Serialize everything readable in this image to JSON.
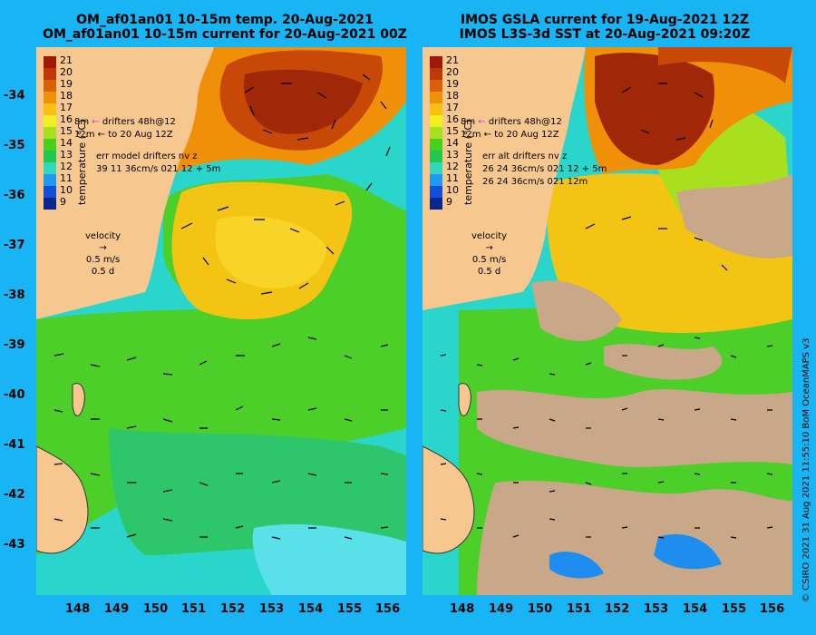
{
  "left": {
    "title_line1": "OM_af01an01 10-15m temp. 20-Aug-2021",
    "title_line2": "OM_af01an01 10-15m current for 20-Aug-2021 00Z",
    "legend_line1": "drifters 48h@12",
    "legend_line2": "to 20 Aug 12Z",
    "legend_depth1": "8m",
    "legend_depth2": "12m",
    "err_title": "err model drifters nv z",
    "err_line1": "39 11 36cm/s 021 12 + 5m",
    "err_line2": ""
  },
  "right": {
    "title_line1": "IMOS GSLA current for 19-Aug-2021 12Z",
    "title_line2": "IMOS L3S-3d SST at 20-Aug-2021 09:20Z",
    "legend_line1": "drifters 48h@12",
    "legend_line2": "to 20 Aug 12Z",
    "legend_depth1": "8m",
    "legend_depth2": "12m",
    "err_title": "err alt drifters nv z",
    "err_line1": "26 24 36cm/s 021 12 + 5m",
    "err_line2": "26 24 36cm/s 021 12m"
  },
  "colorbar": {
    "title": "temperature (°C)",
    "ticks": [
      "21",
      "20",
      "19",
      "18",
      "17",
      "16",
      "15",
      "14",
      "13",
      "12",
      "11",
      "10",
      "9"
    ],
    "colors": [
      "#a01808",
      "#c03808",
      "#d86008",
      "#f09008",
      "#f8c010",
      "#f0f020",
      "#a8e020",
      "#48d020",
      "#20c850",
      "#30d8c0",
      "#2098f0",
      "#1050d8",
      "#082890"
    ]
  },
  "velocity": {
    "label": "velocity",
    "scale": "0.5 m/s",
    "duration": "0.5 d"
  },
  "axes": {
    "y_ticks": [
      "-34",
      "-35",
      "-36",
      "-37",
      "-38",
      "-39",
      "-40",
      "-41",
      "-42",
      "-43"
    ],
    "x_ticks": [
      "148",
      "149",
      "150",
      "151",
      "152",
      "153",
      "154",
      "155",
      "156"
    ]
  },
  "credit": "© CSIRO 2021   31 Aug 2021 11:55:10 BoM OceanMAPS v3",
  "colors": {
    "background": "#18b4f4",
    "land": "#f6c890",
    "cloud_mask": "#c8a888",
    "pink_drifter": "#d83cd8"
  }
}
